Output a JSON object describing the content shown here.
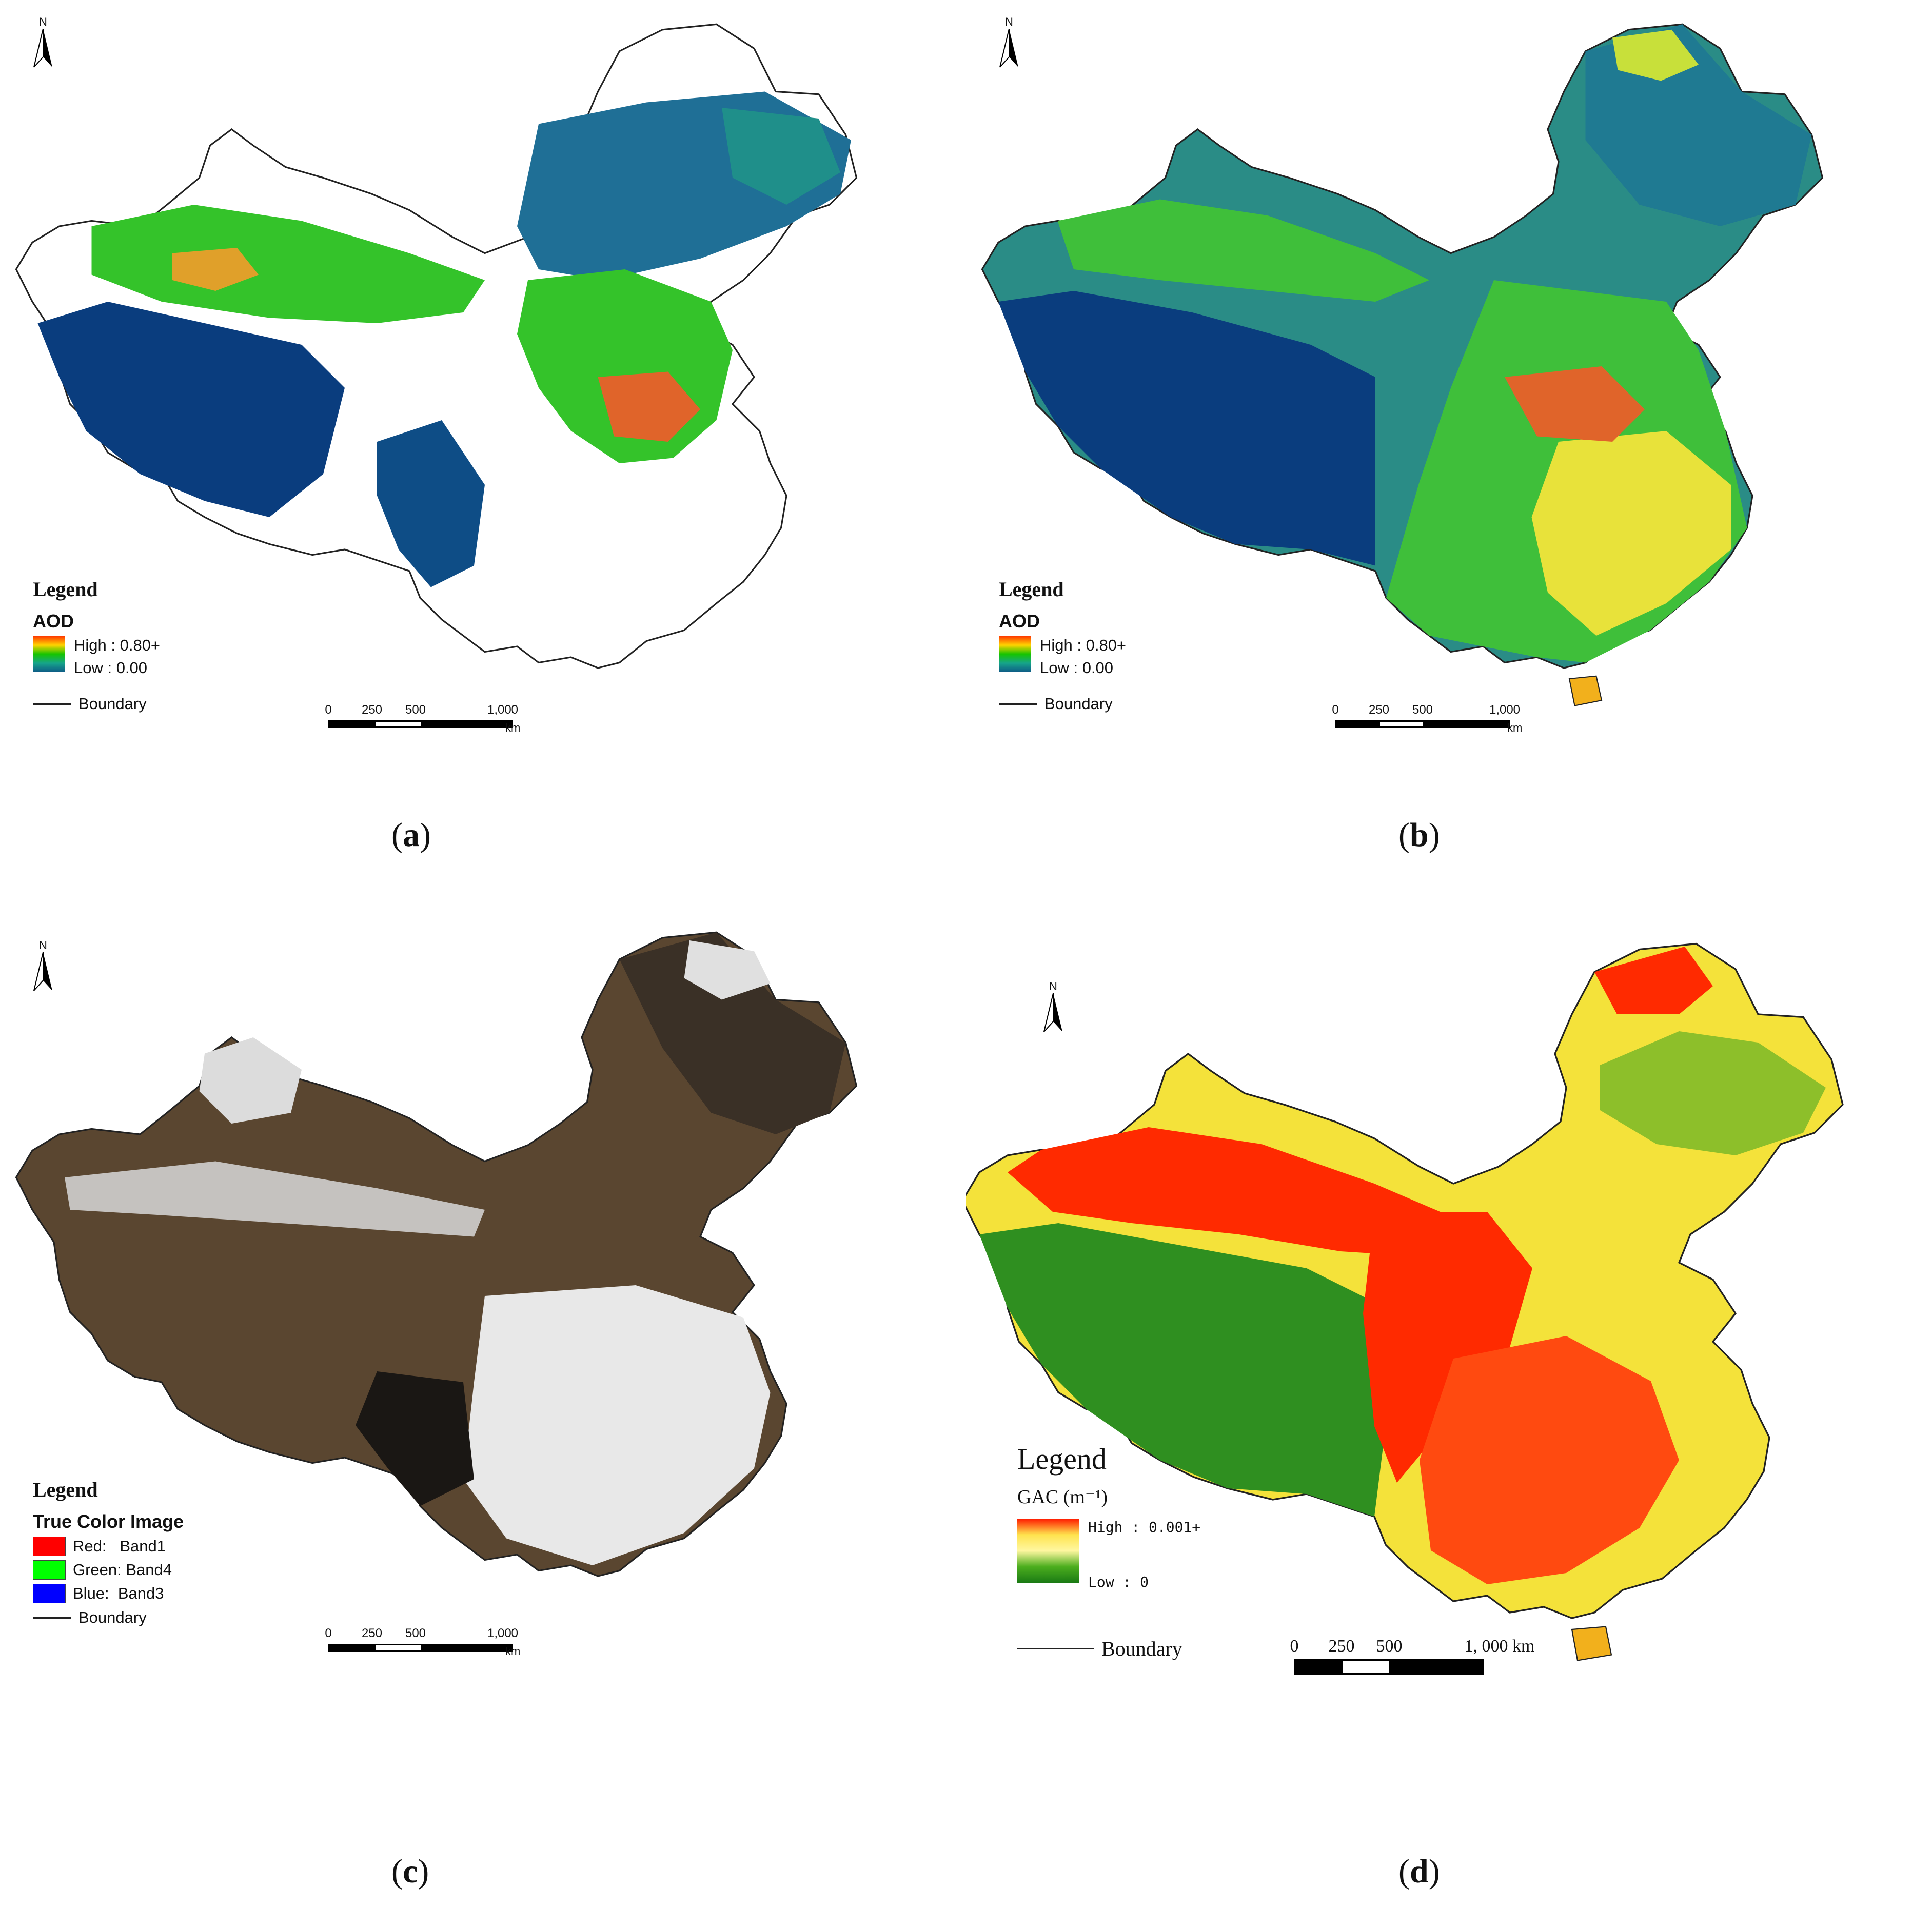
{
  "north_label": "N",
  "panels": [
    {
      "caption": "a",
      "legend": {
        "title": "Legend",
        "variable": "AOD",
        "high": "High : 0.80+",
        "low": "Low : 0.00",
        "boundary": "Boundary"
      },
      "ramp_colors": [
        "#ff3a00",
        "#ffd400",
        "#16c400",
        "#16a58a",
        "#0e5a86"
      ],
      "scale": {
        "ticks": [
          "0",
          "250",
          "500",
          "1,000"
        ],
        "unit": "km"
      }
    },
    {
      "caption": "b",
      "legend": {
        "title": "Legend",
        "variable": "AOD",
        "high": "High : 0.80+",
        "low": "Low : 0.00",
        "boundary": "Boundary"
      },
      "ramp_colors": [
        "#ff3a00",
        "#ffd400",
        "#16c400",
        "#16a58a",
        "#0e5a86"
      ],
      "scale": {
        "ticks": [
          "0",
          "250",
          "500",
          "1,000"
        ],
        "unit": "km"
      }
    },
    {
      "caption": "c",
      "legend": {
        "title": "Legend",
        "variable": "True Color Image",
        "red": "Red:   Band1",
        "green": "Green: Band4",
        "blue": "Blue:  Band3",
        "boundary": "Boundary"
      },
      "band_colors": {
        "red": "#ff0000",
        "green": "#00ff00",
        "blue": "#0000ff"
      },
      "scale": {
        "ticks": [
          "0",
          "250",
          "500",
          "1,000"
        ],
        "unit": "km"
      }
    },
    {
      "caption": "d",
      "legend": {
        "title": "Legend",
        "variable": "GAC (m⁻¹)",
        "high": "High : 0.001+",
        "low": "Low : 0",
        "boundary": "Boundary"
      },
      "ramp_colors": [
        "#ff1a00",
        "#ffe34d",
        "#fff7a0",
        "#4cae1e",
        "#1a7a14"
      ],
      "scale": {
        "ticks": [
          "0",
          "250",
          "500",
          "1, 000 km"
        ],
        "unit": ""
      }
    }
  ],
  "map_colors": {
    "aod_low": "#0a3d7e",
    "aod_mid": "#1f8f8a",
    "aod_green": "#34c32a",
    "aod_yellow": "#f2e41c",
    "aod_high": "#e0642a",
    "tc_brown": "#5a4630",
    "tc_dark": "#2a241c",
    "tc_cloud": "#e6e6e6",
    "gac_red": "#ff2a00",
    "gac_yellow": "#f4e23a",
    "gac_green": "#2f8f20",
    "gac_darkgreen": "#1f6f14"
  }
}
